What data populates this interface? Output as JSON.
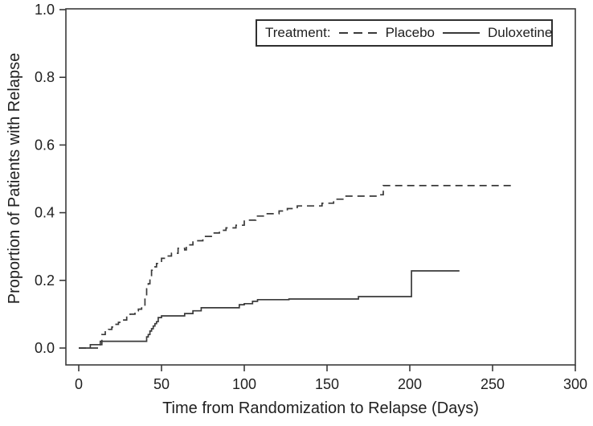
{
  "page": {
    "background_color": "#ffffff",
    "line_color": "#3a3a3a",
    "text_color": "#1f1f1f"
  },
  "chart_data": {
    "type": "line",
    "subtype": "step-kaplan-meier",
    "title": "",
    "xlabel": "Time from Randomization to Relapse (Days)",
    "ylabel": "Proportion of Patients with Relapse",
    "xlim": [
      0,
      300
    ],
    "ylim": [
      0.0,
      1.0
    ],
    "xticks": [
      "0",
      "50",
      "100",
      "150",
      "200",
      "250",
      "300"
    ],
    "yticks": [
      "0.0",
      "0.2",
      "0.4",
      "0.6",
      "0.8",
      "1.0"
    ],
    "grid": false,
    "frame": true,
    "legend": {
      "position": "top-right",
      "title": "Treatment:",
      "entries": [
        {
          "label": "Placebo",
          "line_style": "dashed"
        },
        {
          "label": "Duloxetine",
          "line_style": "solid"
        }
      ]
    },
    "series": [
      {
        "name": "Placebo",
        "line_style": "dashed",
        "points": [
          [
            0,
            0.0
          ],
          [
            13,
            0.02
          ],
          [
            14,
            0.04
          ],
          [
            16,
            0.048
          ],
          [
            18,
            0.055
          ],
          [
            20,
            0.062
          ],
          [
            22,
            0.07
          ],
          [
            24,
            0.076
          ],
          [
            26,
            0.083
          ],
          [
            29,
            0.095
          ],
          [
            31,
            0.1
          ],
          [
            34,
            0.11
          ],
          [
            36,
            0.115
          ],
          [
            38,
            0.125
          ],
          [
            40,
            0.155
          ],
          [
            41,
            0.175
          ],
          [
            42,
            0.19
          ],
          [
            43,
            0.21
          ],
          [
            44,
            0.23
          ],
          [
            46,
            0.24
          ],
          [
            47,
            0.25
          ],
          [
            50,
            0.265
          ],
          [
            53,
            0.272
          ],
          [
            56,
            0.28
          ],
          [
            60,
            0.295
          ],
          [
            64,
            0.29
          ],
          [
            65,
            0.305
          ],
          [
            69,
            0.317
          ],
          [
            75,
            0.33
          ],
          [
            81,
            0.34
          ],
          [
            85,
            0.348
          ],
          [
            89,
            0.355
          ],
          [
            95,
            0.363
          ],
          [
            100,
            0.378
          ],
          [
            107,
            0.39
          ],
          [
            113,
            0.397
          ],
          [
            121,
            0.405
          ],
          [
            126,
            0.412
          ],
          [
            132,
            0.42
          ],
          [
            147,
            0.428
          ],
          [
            154,
            0.44
          ],
          [
            161,
            0.449
          ],
          [
            180,
            0.453
          ],
          [
            184,
            0.48
          ],
          [
            261,
            0.48
          ]
        ]
      },
      {
        "name": "Duloxetine",
        "line_style": "solid",
        "points": [
          [
            0,
            0.0
          ],
          [
            7,
            0.01
          ],
          [
            14,
            0.02
          ],
          [
            41,
            0.033
          ],
          [
            42,
            0.04
          ],
          [
            43,
            0.05
          ],
          [
            44,
            0.057
          ],
          [
            45,
            0.065
          ],
          [
            46,
            0.072
          ],
          [
            47,
            0.078
          ],
          [
            48,
            0.09
          ],
          [
            50,
            0.095
          ],
          [
            64,
            0.102
          ],
          [
            69,
            0.11
          ],
          [
            74,
            0.119
          ],
          [
            97,
            0.128
          ],
          [
            100,
            0.131
          ],
          [
            105,
            0.138
          ],
          [
            108,
            0.143
          ],
          [
            127,
            0.145
          ],
          [
            169,
            0.152
          ],
          [
            201,
            0.228
          ],
          [
            230,
            0.228
          ]
        ]
      }
    ]
  }
}
